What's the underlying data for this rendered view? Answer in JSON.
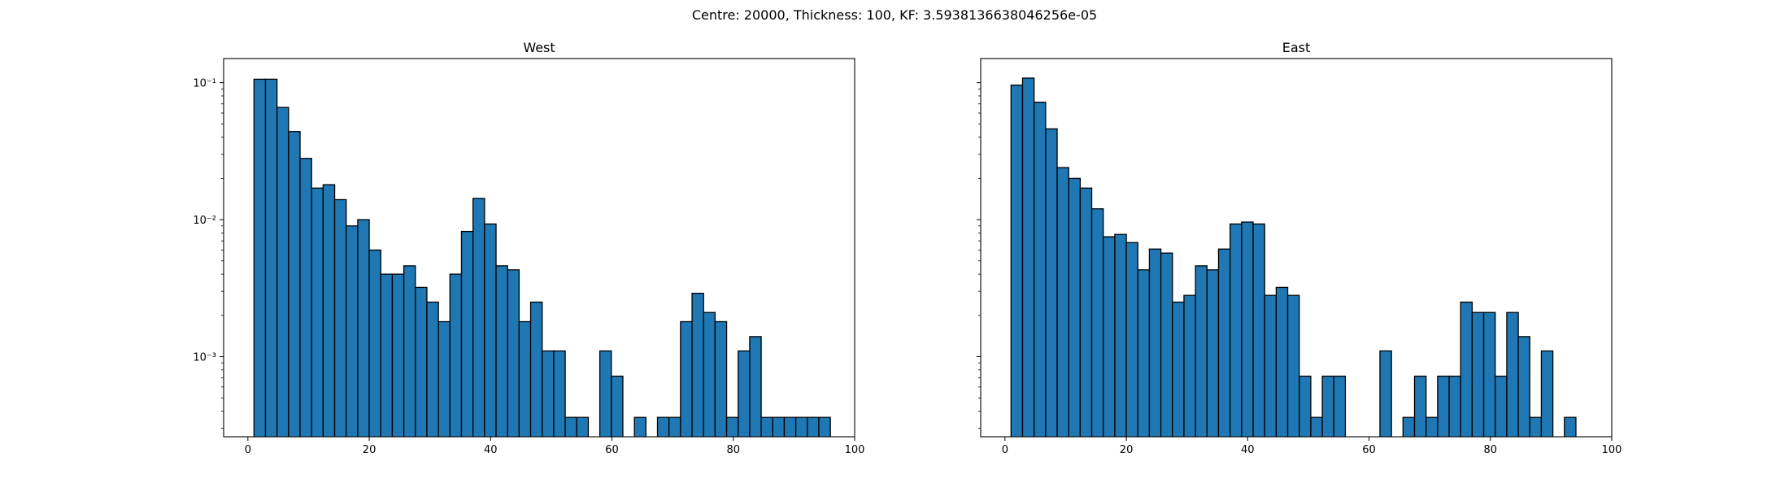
{
  "suptitle": "Centre: 20000, Thickness: 100, KF: 3.5938136638046256e-05",
  "bar_color": "#1f77b4",
  "edge_color": "#000000",
  "chart_data": [
    {
      "type": "bar",
      "title": "West",
      "xlabel": "",
      "ylabel": "",
      "yscale": "log",
      "xlim": [
        -4,
        100
      ],
      "ylim": [
        0.00026,
        0.15
      ],
      "xticks": [
        0,
        20,
        40,
        60,
        80,
        100
      ],
      "xtick_labels": [
        "0",
        "20",
        "40",
        "60",
        "80",
        "100"
      ],
      "yticks": [
        0.001,
        0.01,
        0.1
      ],
      "ytick_labels": [
        "10⁻³",
        "10⁻²",
        "10⁻¹"
      ],
      "show_ytick_labels": true,
      "bin_start": 1,
      "bin_width": 1.9,
      "values": [
        0.106,
        0.106,
        0.066,
        0.044,
        0.028,
        0.017,
        0.018,
        0.014,
        0.009,
        0.01,
        0.006,
        0.004,
        0.004,
        0.0046,
        0.0032,
        0.0025,
        0.0018,
        0.004,
        0.0082,
        0.0143,
        0.0093,
        0.0046,
        0.0043,
        0.0018,
        0.0025,
        0.0011,
        0.0011,
        0.00036,
        0.00036,
        0,
        0.0011,
        0.00072,
        0,
        0.00036,
        0,
        0.00036,
        0.00036,
        0.0018,
        0.0029,
        0.0021,
        0.0018,
        0.00036,
        0.0011,
        0.0014,
        0.00036,
        0.00036,
        0.00036,
        0.00036,
        0.00036,
        0.00036
      ]
    },
    {
      "type": "bar",
      "title": "East",
      "xlabel": "",
      "ylabel": "",
      "yscale": "log",
      "xlim": [
        -4,
        100
      ],
      "ylim": [
        0.00026,
        0.15
      ],
      "xticks": [
        0,
        20,
        40,
        60,
        80,
        100
      ],
      "xtick_labels": [
        "0",
        "20",
        "40",
        "60",
        "80",
        "100"
      ],
      "yticks": [
        0.001,
        0.01,
        0.1
      ],
      "ytick_labels": [],
      "show_ytick_labels": false,
      "bin_start": 1,
      "bin_width": 1.9,
      "values": [
        0.096,
        0.108,
        0.072,
        0.046,
        0.024,
        0.02,
        0.017,
        0.012,
        0.0075,
        0.0078,
        0.0068,
        0.0043,
        0.0061,
        0.0057,
        0.0025,
        0.0028,
        0.0046,
        0.0043,
        0.0061,
        0.0093,
        0.0096,
        0.0093,
        0.0028,
        0.0032,
        0.0028,
        0.00072,
        0.00036,
        0.00072,
        0.00072,
        0,
        0,
        0,
        0.0011,
        0,
        0.00036,
        0.00072,
        0.00036,
        0.00072,
        0.00072,
        0.0025,
        0.0021,
        0.0021,
        0.00072,
        0.0021,
        0.0014,
        0.00036,
        0.0011,
        0,
        0.00036,
        0
      ]
    }
  ]
}
